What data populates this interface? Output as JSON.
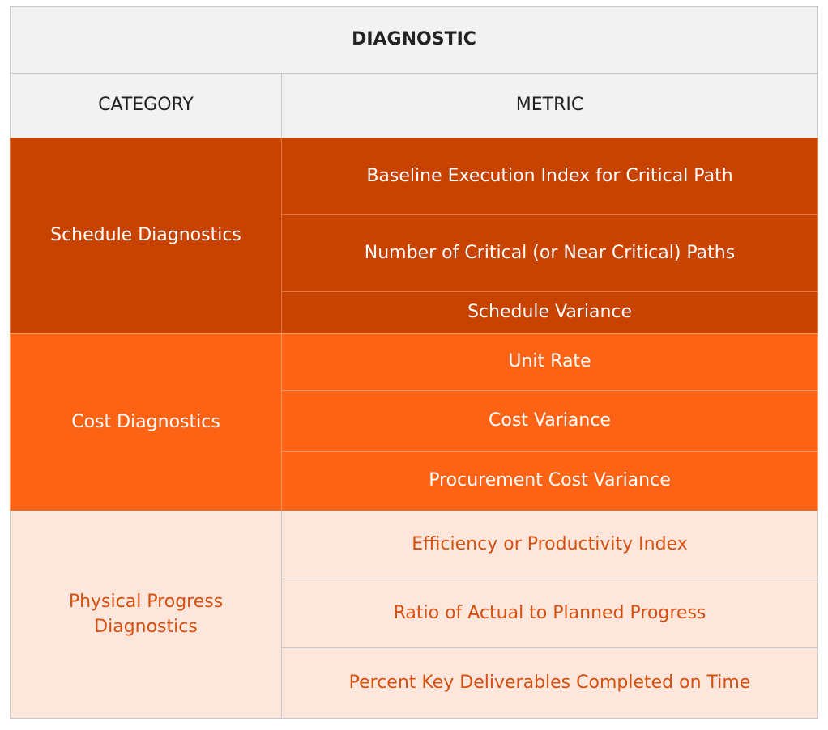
{
  "header": {
    "title": "DIAGNOSTIC"
  },
  "table": {
    "columns": [
      "CATEGORY",
      "METRIC"
    ],
    "groups": [
      {
        "category": "Schedule Diagnostics",
        "metrics": [
          "Baseline Execution Index for Critical Path",
          "Number of Critical (or Near Critical) Paths",
          "Schedule Variance"
        ]
      },
      {
        "category": "Cost Diagnostics",
        "metrics": [
          "Unit Rate",
          "Cost Variance",
          "Procurement Cost Variance"
        ]
      },
      {
        "category": "Physical Progress Diagnostics",
        "metrics": [
          "Efficiency or Productivity Index",
          "Ratio of Actual to Planned Progress",
          "Percent Key Deliverables Completed on Time"
        ]
      }
    ]
  }
}
